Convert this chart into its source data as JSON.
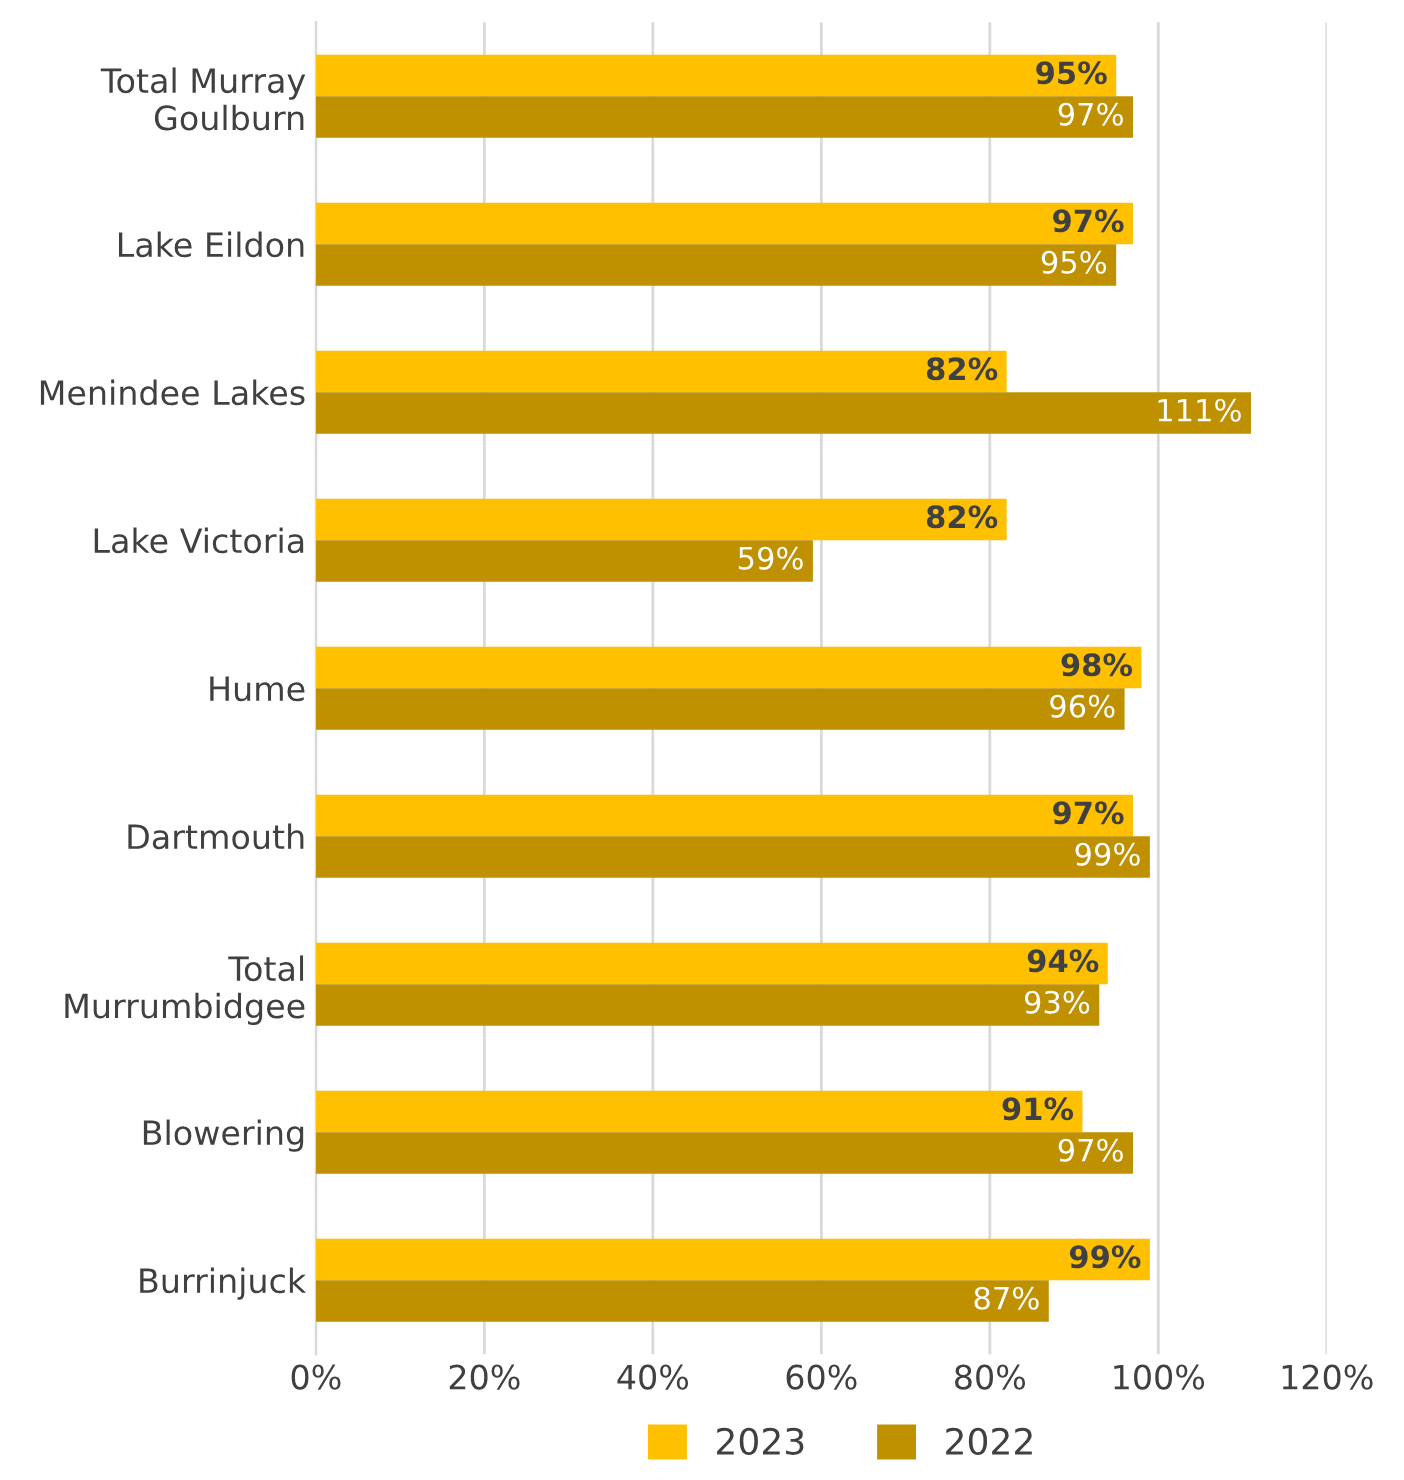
{
  "chart_data": {
    "type": "bar",
    "orientation": "horizontal",
    "categories": [
      "Total Murray\nGoulburn",
      "Lake Eildon",
      "Menindee Lakes",
      "Lake Victoria",
      "Hume",
      "Dartmouth",
      "Total\nMurrumbidgee",
      "Blowering",
      "Burrinjuck"
    ],
    "series": [
      {
        "name": "2023",
        "color": "#ffc000",
        "values": [
          95,
          97,
          82,
          82,
          98,
          97,
          94,
          91,
          99
        ],
        "value_labels": [
          "95%",
          "97%",
          "82%",
          "82%",
          "98%",
          "97%",
          "94%",
          "91%",
          "99%"
        ]
      },
      {
        "name": "2022",
        "color": "#bf9000",
        "values": [
          97,
          95,
          111,
          59,
          96,
          99,
          93,
          97,
          87
        ],
        "value_labels": [
          "97%",
          "95%",
          "111%",
          "59%",
          "96%",
          "99%",
          "93%",
          "97%",
          "87%"
        ]
      }
    ],
    "xlim": [
      0,
      120
    ],
    "xticks": [
      {
        "value": 0,
        "label": "0%"
      },
      {
        "value": 20,
        "label": "20%"
      },
      {
        "value": 40,
        "label": "40%"
      },
      {
        "value": 60,
        "label": "60%"
      },
      {
        "value": 80,
        "label": "80%"
      },
      {
        "value": 100,
        "label": "100%"
      },
      {
        "value": 120,
        "label": "120%"
      }
    ],
    "grid": "x",
    "legend": "bottom"
  }
}
